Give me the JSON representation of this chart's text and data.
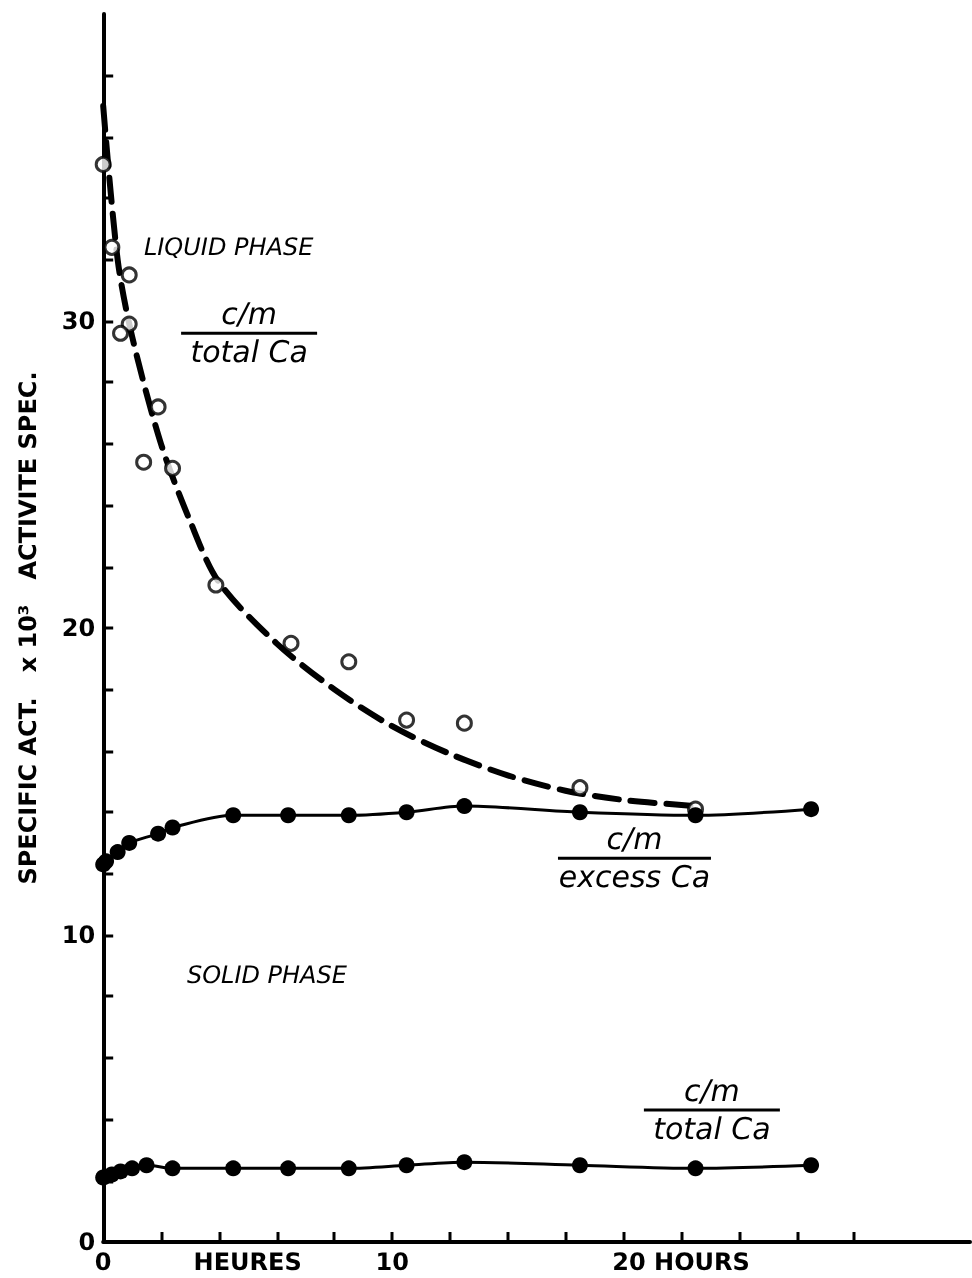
{
  "chart_data": {
    "type": "line",
    "ylabel": "SPECIFIC ACT.   x 10³   ACTIVITE SPEC.",
    "xlabel": "HEURES",
    "xlim": [
      0,
      30
    ],
    "xticks": [
      0,
      {
        "value": 2,
        "label": null
      },
      {
        "value": 4,
        "label": null
      },
      {
        "value": 6,
        "label": null
      },
      {
        "value": 8,
        "label": null
      },
      10,
      {
        "value": 12,
        "label": null
      },
      {
        "value": 14,
        "label": null
      },
      {
        "value": 16,
        "label": null
      },
      {
        "value": 18,
        "label": null
      },
      {
        "value": 20,
        "label": "20 HOURS"
      },
      {
        "value": 22,
        "label": null
      },
      {
        "value": 24,
        "label": null
      },
      {
        "value": 26,
        "label": null
      }
    ],
    "ylim": [
      0,
      40
    ],
    "yticks": [
      0,
      {
        "value": 2,
        "label": null
      },
      {
        "value": 4,
        "label": null
      },
      {
        "value": 6,
        "label": null
      },
      {
        "value": 8,
        "label": null
      },
      10,
      {
        "value": 12,
        "label": null
      },
      {
        "value": 14,
        "label": null
      },
      {
        "value": 16,
        "label": null
      },
      {
        "value": 18,
        "label": null
      },
      20,
      {
        "value": 22,
        "label": null
      },
      {
        "value": 24,
        "label": null
      },
      {
        "value": 26,
        "label": null
      },
      {
        "value": 28,
        "label": null
      },
      30,
      {
        "value": 32,
        "label": null
      },
      {
        "value": 34,
        "label": null
      },
      {
        "value": 36,
        "label": null
      },
      {
        "value": 38,
        "label": null
      }
    ],
    "grid": false,
    "series": [
      {
        "type": "scatter",
        "color": "#000000",
        "marker": "circle",
        "x": [
          0,
          0.3,
          0.9,
          0.9,
          0.6,
          1.9,
          1.4,
          2.4,
          3.9,
          6.5,
          8.5,
          10.5,
          12.5,
          16.5,
          20.5
        ],
        "values": [
          35.1,
          32.4,
          31.5,
          29.9,
          29.6,
          27.2,
          25.4,
          25.2,
          21.4,
          19.5,
          18.9,
          17.0,
          16.9,
          14.8,
          14.1
        ]
      },
      {
        "color": "#000000",
        "marker": "none",
        "line_style": "dashed",
        "x": [
          0,
          0.5,
          1,
          2,
          3,
          4,
          6,
          8,
          10,
          12,
          14,
          16,
          18,
          20.5
        ],
        "values": [
          37,
          32,
          29.5,
          26,
          23.5,
          21.5,
          19.5,
          18,
          16.8,
          15.9,
          15.2,
          14.7,
          14.4,
          14.2
        ]
      },
      {
        "color": "#000000",
        "marker": "circle",
        "line_style": "solid",
        "x": [
          0,
          0.1,
          0.5,
          0.9,
          1.9,
          2.4,
          4.5,
          6.4,
          8.5,
          10.5,
          12.5,
          16.5,
          20.5,
          24.5
        ],
        "values": [
          12.3,
          12.4,
          12.7,
          13.0,
          13.3,
          13.5,
          13.9,
          13.9,
          13.9,
          14.0,
          14.2,
          14.0,
          13.9,
          14.1
        ]
      },
      {
        "color": "#000000",
        "marker": "circle",
        "line_style": "solid",
        "x": [
          0,
          0.3,
          0.6,
          1,
          1.5,
          2.4,
          4.5,
          6.4,
          8.5,
          10.5,
          12.5,
          16.5,
          20.5,
          24.5
        ],
        "values": [
          2.1,
          2.2,
          2.3,
          2.4,
          2.5,
          2.4,
          2.4,
          2.4,
          2.4,
          2.5,
          2.6,
          2.5,
          2.4,
          2.5
        ]
      }
    ],
    "annotations": [
      "LIQUID PHASE",
      "c/m\ntotal Ca",
      "c/m\nexcess Ca",
      "SOLID PHASE",
      "c/m\ntotal Ca"
    ]
  }
}
